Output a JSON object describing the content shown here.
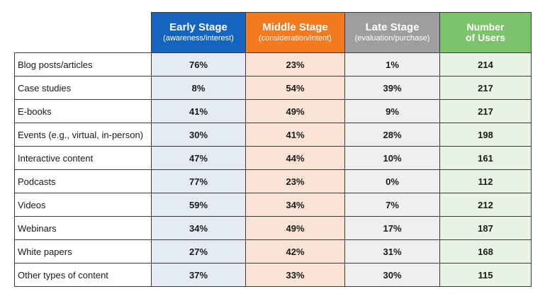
{
  "colors": {
    "early": "#1565c0",
    "middle": "#f47a20",
    "late": "#9e9e9e",
    "users": "#7cc36b",
    "early_fill": "#e4ebf4",
    "middle_fill": "#fbe4d5",
    "late_fill": "#efefef",
    "users_fill": "#e9f3e4"
  },
  "headers": {
    "early": {
      "title": "Early Stage",
      "subtitle": "(awareness/interest)"
    },
    "middle": {
      "title": "Middle Stage",
      "subtitle": "(consideration/intent)"
    },
    "late": {
      "title": "Late Stage",
      "subtitle": "(evaluation/purchase)"
    },
    "users": {
      "title_line1": "Number",
      "title_line2": "of Users"
    }
  },
  "rows": [
    {
      "label": "Blog posts/articles",
      "early": "76%",
      "middle": "23%",
      "late": "1%",
      "users": "214"
    },
    {
      "label": "Case studies",
      "early": "8%",
      "middle": "54%",
      "late": "39%",
      "users": "217"
    },
    {
      "label": "E-books",
      "early": "41%",
      "middle": "49%",
      "late": "9%",
      "users": "217"
    },
    {
      "label": "Events (e.g., virtual, in-person)",
      "early": "30%",
      "middle": "41%",
      "late": "28%",
      "users": "198"
    },
    {
      "label": "Interactive content",
      "early": "47%",
      "middle": "44%",
      "late": "10%",
      "users": "161"
    },
    {
      "label": "Podcasts",
      "early": "77%",
      "middle": "23%",
      "late": "0%",
      "users": "112"
    },
    {
      "label": "Videos",
      "early": "59%",
      "middle": "34%",
      "late": "7%",
      "users": "212"
    },
    {
      "label": "Webinars",
      "early": "34%",
      "middle": "49%",
      "late": "17%",
      "users": "187"
    },
    {
      "label": "White papers",
      "early": "27%",
      "middle": "42%",
      "late": "31%",
      "users": "168"
    },
    {
      "label": "Other types of content",
      "early": "37%",
      "middle": "33%",
      "late": "30%",
      "users": "115"
    }
  ],
  "footnote": ""
}
